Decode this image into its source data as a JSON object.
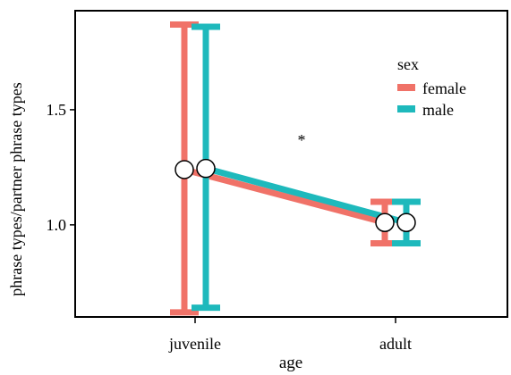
{
  "chart_data": {
    "type": "line",
    "title": "",
    "xlabel": "age",
    "ylabel": "phrase types/partner phrase types",
    "categories": [
      "juvenile",
      "adult"
    ],
    "ylim": [
      0.6,
      1.93
    ],
    "yticks": [
      1.0,
      1.5
    ],
    "ytick_labels": [
      "1.0",
      "1.5"
    ],
    "grid": false,
    "legend": {
      "title": "sex",
      "placement": "top-right"
    },
    "annotation": "*",
    "series": [
      {
        "name": "female",
        "color": "#F07268",
        "values": [
          1.24,
          1.01
        ],
        "lower": [
          0.62,
          0.92
        ],
        "upper": [
          1.87,
          1.1
        ]
      },
      {
        "name": "male",
        "color": "#1EB9BC",
        "values": [
          1.245,
          1.01
        ],
        "lower": [
          0.64,
          0.92
        ],
        "upper": [
          1.86,
          1.1
        ]
      }
    ]
  }
}
